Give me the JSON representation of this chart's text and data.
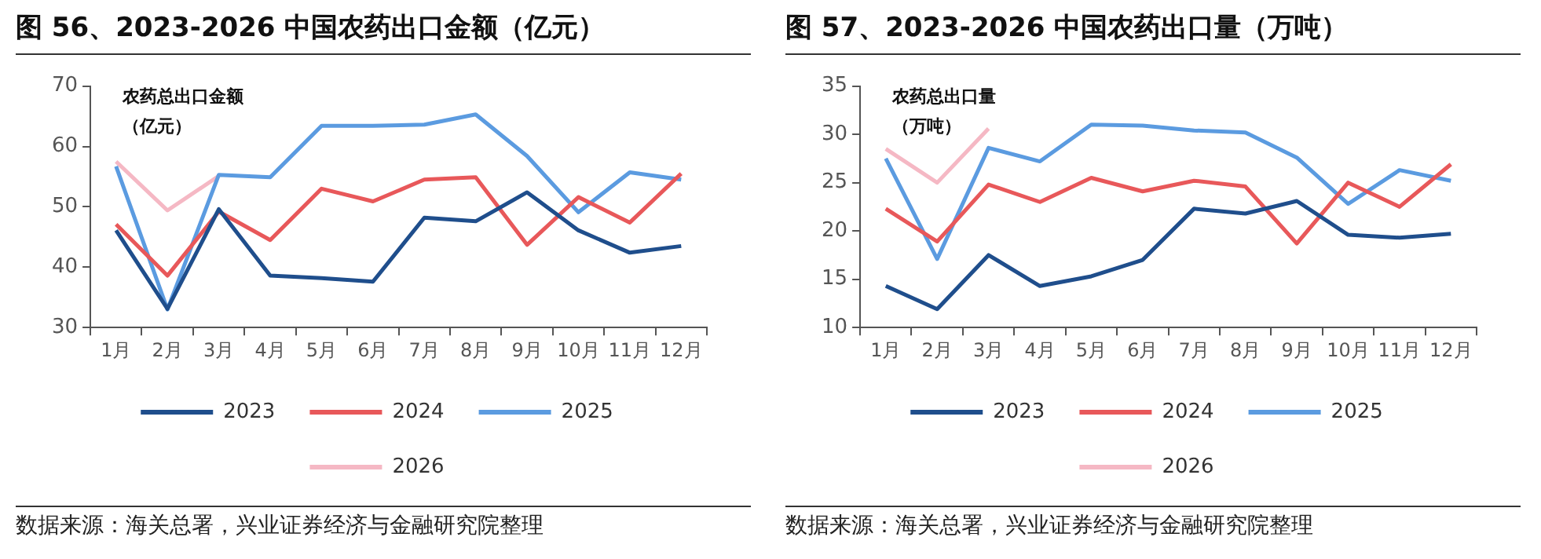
{
  "chart_data": [
    {
      "type": "line",
      "title": "图 56、2023-2026 中国农药出口金额（亿元）",
      "ylabel": "农药总出口金额（亿元）",
      "categories": [
        "1月",
        "2月",
        "3月",
        "4月",
        "5月",
        "6月",
        "7月",
        "8月",
        "9月",
        "10月",
        "11月",
        "12月"
      ],
      "series": [
        {
          "name": "2023",
          "color": "#1f4e8c",
          "values": [
            46.1,
            33.1,
            49.6,
            38.6,
            38.2,
            37.6,
            48.2,
            47.6,
            52.4,
            46.1,
            42.4,
            43.5
          ]
        },
        {
          "name": "2024",
          "color": "#e8585a",
          "values": [
            47.1,
            38.6,
            49.2,
            44.5,
            53,
            50.9,
            54.5,
            54.9,
            43.7,
            51.6,
            47.4,
            55.5
          ]
        },
        {
          "name": "2025",
          "color": "#5b9be0",
          "values": [
            56.7,
            33.0,
            55.3,
            54.9,
            63.4,
            63.4,
            63.6,
            65.3,
            58.4,
            49.1,
            55.7,
            54.5
          ]
        },
        {
          "name": "2026",
          "color": "#f5b8c4",
          "values": [
            57.5,
            49.4,
            55.1,
            null,
            null,
            null,
            null,
            null,
            null,
            null,
            null,
            null
          ]
        }
      ],
      "ylim": [
        30,
        70
      ],
      "yticks": [
        30,
        40,
        50,
        60,
        70
      ],
      "grid": false,
      "legend": "bottom",
      "marker": "none",
      "line_style": "solid",
      "annotations": [
        "数据来源：海关总署，兴业证券经济与金融研究院整理"
      ]
    },
    {
      "type": "line",
      "title": "图 57、2023-2026 中国农药出口量（万吨）",
      "ylabel": "农药总出口量（万吨）",
      "categories": [
        "1月",
        "2月",
        "3月",
        "4月",
        "5月",
        "6月",
        "7月",
        "8月",
        "9月",
        "10月",
        "11月",
        "12月"
      ],
      "series": [
        {
          "name": "2023",
          "color": "#1f4e8c",
          "values": [
            14.3,
            11.9,
            17.5,
            14.3,
            15.3,
            17.0,
            22.3,
            21.8,
            23.1,
            19.6,
            19.3,
            19.7
          ]
        },
        {
          "name": "2024",
          "color": "#e8585a",
          "values": [
            22.3,
            18.9,
            24.8,
            23.0,
            25.5,
            24.1,
            25.2,
            24.6,
            18.7,
            25.0,
            22.5,
            26.9
          ]
        },
        {
          "name": "2025",
          "color": "#5b9be0",
          "values": [
            27.5,
            17.1,
            28.6,
            27.2,
            31.0,
            30.9,
            30.4,
            30.2,
            27.6,
            22.8,
            26.3,
            25.2
          ]
        },
        {
          "name": "2026",
          "color": "#f5b8c4",
          "values": [
            28.5,
            25.0,
            30.6,
            null,
            null,
            null,
            null,
            null,
            null,
            null,
            null,
            null
          ]
        }
      ],
      "ylim": [
        10,
        35
      ],
      "yticks": [
        10,
        15,
        20,
        25,
        30,
        35
      ],
      "grid": false,
      "legend": "bottom",
      "marker": "none",
      "line_style": "solid",
      "annotations": [
        "数据来源：海关总署，兴业证券经济与金融研究院整理"
      ]
    }
  ]
}
